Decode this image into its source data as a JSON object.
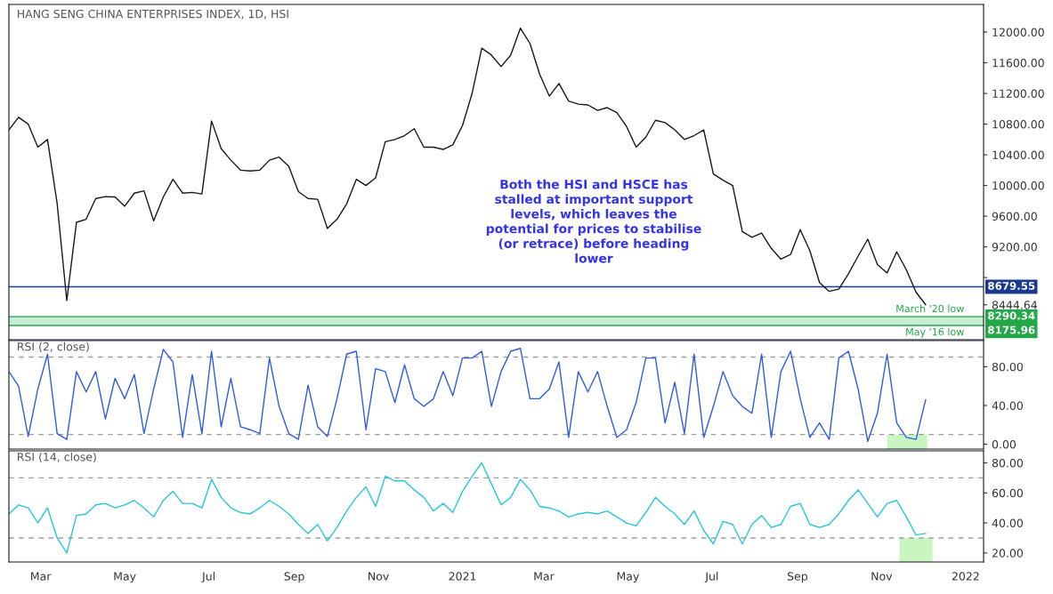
{
  "chart_data": [
    {
      "type": "line",
      "title": "HANG SENG CHINA ENTERPRISES INDEX, 1D, HSI",
      "x": [
        "2020-02-07",
        "2020-02-14",
        "2020-02-21",
        "2020-02-28",
        "2020-03-06",
        "2020-03-13",
        "2020-03-20",
        "2020-03-27",
        "2020-04-03",
        "2020-04-10",
        "2020-04-17",
        "2020-04-24",
        "2020-05-01",
        "2020-05-08",
        "2020-05-15",
        "2020-05-22",
        "2020-05-29",
        "2020-06-05",
        "2020-06-12",
        "2020-06-19",
        "2020-06-26",
        "2020-07-03",
        "2020-07-10",
        "2020-07-17",
        "2020-07-24",
        "2020-07-31",
        "2020-08-07",
        "2020-08-14",
        "2020-08-21",
        "2020-08-28",
        "2020-09-04",
        "2020-09-11",
        "2020-09-18",
        "2020-09-25",
        "2020-10-02",
        "2020-10-09",
        "2020-10-16",
        "2020-10-23",
        "2020-10-30",
        "2020-11-06",
        "2020-11-13",
        "2020-11-20",
        "2020-11-27",
        "2020-12-04",
        "2020-12-11",
        "2020-12-18",
        "2020-12-25",
        "2021-01-01",
        "2021-01-08",
        "2021-01-15",
        "2021-01-22",
        "2021-01-29",
        "2021-02-05",
        "2021-02-12",
        "2021-02-19",
        "2021-02-26",
        "2021-03-05",
        "2021-03-12",
        "2021-03-19",
        "2021-03-26",
        "2021-04-02",
        "2021-04-09",
        "2021-04-16",
        "2021-04-23",
        "2021-04-30",
        "2021-05-07",
        "2021-05-14",
        "2021-05-21",
        "2021-05-28",
        "2021-06-04",
        "2021-06-11",
        "2021-06-18",
        "2021-06-25",
        "2021-07-02",
        "2021-07-09",
        "2021-07-16",
        "2021-07-23",
        "2021-07-30",
        "2021-08-06",
        "2021-08-13",
        "2021-08-20",
        "2021-08-27",
        "2021-09-03",
        "2021-09-10",
        "2021-09-17",
        "2021-09-24",
        "2021-10-01",
        "2021-10-08",
        "2021-10-15",
        "2021-10-22",
        "2021-10-29",
        "2021-11-05",
        "2021-11-12",
        "2021-11-19",
        "2021-11-26",
        "2021-12-03"
      ],
      "series": [
        {
          "color": "#131722",
          "values": [
            10725,
            10890,
            10800,
            10500,
            10600,
            9765,
            8500,
            9520,
            9560,
            9830,
            9855,
            9850,
            9730,
            9900,
            9930,
            9540,
            9850,
            10080,
            9900,
            9910,
            9890,
            10840,
            10480,
            10330,
            10200,
            10190,
            10200,
            10330,
            10370,
            10250,
            9920,
            9830,
            9820,
            9440,
            9560,
            9760,
            10080,
            10000,
            10100,
            10570,
            10600,
            10650,
            10740,
            10500,
            10500,
            10470,
            10530,
            10780,
            11200,
            11790,
            11700,
            11550,
            11700,
            12050,
            11850,
            11450,
            11165,
            11330,
            11100,
            11060,
            11050,
            10980,
            11015,
            10950,
            10770,
            10500,
            10630,
            10850,
            10820,
            10725,
            10600,
            10650,
            10725,
            10150,
            10070,
            10000,
            9400,
            9325,
            9380,
            9180,
            9040,
            9100,
            9425,
            9150,
            8735,
            8620,
            8650,
            8850,
            9080,
            9300,
            8970,
            8860,
            9135,
            8900,
            8610,
            8444.64
          ]
        }
      ],
      "xlim": [
        "2020-02-07",
        "2022-01-14"
      ],
      "ylim": [
        7990,
        12360
      ],
      "yticks": [
        {
          "value": 8444.64,
          "label": "8444.64"
        },
        {
          "value": 8800,
          "label": null
        },
        {
          "value": 9200,
          "label": "9200.00"
        },
        {
          "value": 9600,
          "label": "9600.00"
        },
        {
          "value": 10000,
          "label": "10000.00"
        },
        {
          "value": 10400,
          "label": "10400.00"
        },
        {
          "value": 10800,
          "label": "10800.00"
        },
        {
          "value": 11200,
          "label": "11200.00"
        },
        {
          "value": 11600,
          "label": "11600.00"
        },
        {
          "value": 12000,
          "label": "12000.00"
        }
      ],
      "tick_labels": "y",
      "bands": [
        {
          "axis": "y",
          "from": 8175.96,
          "to": 8290.34,
          "color": "#c8eed5"
        }
      ],
      "ref_lines": [
        {
          "axis": "y",
          "value": 8679.55,
          "label": "8679.55",
          "color": "#1a3a8f"
        },
        {
          "axis": "y",
          "value": 8290.34,
          "label": "8290.34",
          "color": "#22a846"
        },
        {
          "axis": "y",
          "value": 8175.96,
          "label": "8175.96",
          "color": "#22a846"
        }
      ],
      "annotations": [
        "Both the HSI and HSCE has\nstalled at important support\nlevels, which leaves the\npotential for prices to stabilise\n(or retrace) before heading\nlower",
        {
          "text": "March '20 low",
          "x": "2021-12-31",
          "y": 8290.34
        },
        {
          "text": "May '16 low",
          "x": "2021-12-31",
          "y": 8175.96
        }
      ]
    },
    {
      "type": "line",
      "title": "RSI (2, close)",
      "x": [
        "2020-02-07",
        "2020-02-14",
        "2020-02-21",
        "2020-02-28",
        "2020-03-06",
        "2020-03-13",
        "2020-03-20",
        "2020-03-27",
        "2020-04-03",
        "2020-04-10",
        "2020-04-17",
        "2020-04-24",
        "2020-05-01",
        "2020-05-08",
        "2020-05-15",
        "2020-05-22",
        "2020-05-29",
        "2020-06-05",
        "2020-06-12",
        "2020-06-19",
        "2020-06-26",
        "2020-07-03",
        "2020-07-10",
        "2020-07-17",
        "2020-07-24",
        "2020-07-31",
        "2020-08-07",
        "2020-08-14",
        "2020-08-21",
        "2020-08-28",
        "2020-09-04",
        "2020-09-11",
        "2020-09-18",
        "2020-09-25",
        "2020-10-02",
        "2020-10-09",
        "2020-10-16",
        "2020-10-23",
        "2020-10-30",
        "2020-11-06",
        "2020-11-13",
        "2020-11-20",
        "2020-11-27",
        "2020-12-04",
        "2020-12-11",
        "2020-12-18",
        "2020-12-25",
        "2021-01-01",
        "2021-01-08",
        "2021-01-15",
        "2021-01-22",
        "2021-01-29",
        "2021-02-05",
        "2021-02-12",
        "2021-02-19",
        "2021-02-26",
        "2021-03-05",
        "2021-03-12",
        "2021-03-19",
        "2021-03-26",
        "2021-04-02",
        "2021-04-09",
        "2021-04-16",
        "2021-04-23",
        "2021-04-30",
        "2021-05-07",
        "2021-05-14",
        "2021-05-21",
        "2021-05-28",
        "2021-06-04",
        "2021-06-11",
        "2021-06-18",
        "2021-06-25",
        "2021-07-02",
        "2021-07-09",
        "2021-07-16",
        "2021-07-23",
        "2021-07-30",
        "2021-08-06",
        "2021-08-13",
        "2021-08-20",
        "2021-08-27",
        "2021-09-03",
        "2021-09-10",
        "2021-09-17",
        "2021-09-24",
        "2021-10-01",
        "2021-10-08",
        "2021-10-15",
        "2021-10-22",
        "2021-10-29",
        "2021-11-05",
        "2021-11-12",
        "2021-11-19",
        "2021-11-26",
        "2021-12-03"
      ],
      "series": [
        {
          "color": "#2e5ce6",
          "values": [
            75,
            60,
            8,
            57,
            93,
            11,
            5,
            75,
            54,
            75,
            26,
            68,
            47,
            72,
            11,
            57,
            98,
            85,
            7,
            72,
            11,
            96,
            18,
            68,
            18,
            15,
            11,
            89,
            39,
            11,
            5,
            61,
            18,
            8,
            47,
            93,
            96,
            15,
            78,
            75,
            43,
            82,
            47,
            39,
            47,
            75,
            50,
            89,
            89,
            96,
            39,
            75,
            96,
            99,
            47,
            47,
            57,
            85,
            7,
            75,
            54,
            75,
            39,
            7,
            15,
            43,
            89,
            89,
            22,
            64,
            11,
            93,
            7,
            39,
            75,
            50,
            39,
            32,
            93,
            7,
            75,
            96,
            47,
            7,
            22,
            5,
            89,
            96,
            57,
            3,
            32,
            93,
            22,
            7,
            5,
            46
          ]
        }
      ],
      "xlim": [
        "2020-02-07",
        "2022-01-14"
      ],
      "ylim": [
        -5,
        107
      ],
      "yticks": [
        {
          "value": 0,
          "label": "0.00"
        },
        {
          "value": 40,
          "label": "40.00"
        },
        {
          "value": 80,
          "label": "80.00"
        }
      ],
      "tick_labels": "y",
      "ref_lines": [
        {
          "axis": "y",
          "value": 90,
          "color": "#9e9e9e",
          "line_style": "dashed"
        },
        {
          "axis": "y",
          "value": 10,
          "color": "#9e9e9e",
          "line_style": "dashed"
        }
      ],
      "bands": [
        {
          "axis": "x",
          "from": "2021-11-05",
          "to": "2021-12-04",
          "color": "#c8f5c0"
        }
      ]
    },
    {
      "type": "line",
      "title": "RSI (14, close)",
      "x": [
        "2020-02-07",
        "2020-02-14",
        "2020-02-21",
        "2020-02-28",
        "2020-03-06",
        "2020-03-13",
        "2020-03-20",
        "2020-03-27",
        "2020-04-03",
        "2020-04-10",
        "2020-04-17",
        "2020-04-24",
        "2020-05-01",
        "2020-05-08",
        "2020-05-15",
        "2020-05-22",
        "2020-05-29",
        "2020-06-05",
        "2020-06-12",
        "2020-06-19",
        "2020-06-26",
        "2020-07-03",
        "2020-07-10",
        "2020-07-17",
        "2020-07-24",
        "2020-07-31",
        "2020-08-07",
        "2020-08-14",
        "2020-08-21",
        "2020-08-28",
        "2020-09-04",
        "2020-09-11",
        "2020-09-18",
        "2020-09-25",
        "2020-10-02",
        "2020-10-09",
        "2020-10-16",
        "2020-10-23",
        "2020-10-30",
        "2020-11-06",
        "2020-11-13",
        "2020-11-20",
        "2020-11-27",
        "2020-12-04",
        "2020-12-11",
        "2020-12-18",
        "2020-12-25",
        "2021-01-01",
        "2021-01-08",
        "2021-01-15",
        "2021-01-22",
        "2021-01-29",
        "2021-02-05",
        "2021-02-12",
        "2021-02-19",
        "2021-02-26",
        "2021-03-05",
        "2021-03-12",
        "2021-03-19",
        "2021-03-26",
        "2021-04-02",
        "2021-04-09",
        "2021-04-16",
        "2021-04-23",
        "2021-04-30",
        "2021-05-07",
        "2021-05-14",
        "2021-05-21",
        "2021-05-28",
        "2021-06-04",
        "2021-06-11",
        "2021-06-18",
        "2021-06-25",
        "2021-07-02",
        "2021-07-09",
        "2021-07-16",
        "2021-07-23",
        "2021-07-30",
        "2021-08-06",
        "2021-08-13",
        "2021-08-20",
        "2021-08-27",
        "2021-09-03",
        "2021-09-10",
        "2021-09-17",
        "2021-09-24",
        "2021-10-01",
        "2021-10-08",
        "2021-10-15",
        "2021-10-22",
        "2021-10-29",
        "2021-11-05",
        "2021-11-12",
        "2021-11-19",
        "2021-11-26",
        "2021-12-03"
      ],
      "series": [
        {
          "color": "#26c6da",
          "values": [
            46,
            52,
            50,
            40,
            50,
            30,
            20,
            45,
            46,
            52,
            53,
            50,
            52,
            55,
            50,
            44,
            55,
            61,
            53,
            53,
            50,
            69,
            57,
            50,
            47,
            46,
            50,
            55,
            51,
            46,
            39,
            33,
            39,
            28,
            37,
            48,
            57,
            64,
            51,
            71,
            68,
            68,
            62,
            57,
            48,
            53,
            47,
            61,
            71,
            80,
            66,
            52,
            57,
            69,
            62,
            51,
            50,
            48,
            44,
            46,
            47,
            46,
            48,
            44,
            40,
            38,
            47,
            57,
            51,
            46,
            39,
            48,
            35,
            26,
            41,
            39,
            26,
            39,
            45,
            37,
            39,
            51,
            53,
            39,
            37,
            39,
            46,
            55,
            62,
            53,
            44,
            53,
            55,
            44,
            32,
            33
          ]
        }
      ],
      "xlim": [
        "2020-02-07",
        "2022-01-14"
      ],
      "ylim": [
        14,
        88
      ],
      "xticks": [
        {
          "value": "2020-03-01",
          "label": "Mar"
        },
        {
          "value": "2020-05-01",
          "label": "May"
        },
        {
          "value": "2020-07-01",
          "label": "Jul"
        },
        {
          "value": "2020-09-01",
          "label": "Sep"
        },
        {
          "value": "2020-11-01",
          "label": "Nov"
        },
        {
          "value": "2021-01-01",
          "label": "2021"
        },
        {
          "value": "2021-03-01",
          "label": "Mar"
        },
        {
          "value": "2021-05-01",
          "label": "May"
        },
        {
          "value": "2021-07-01",
          "label": "Jul"
        },
        {
          "value": "2021-09-01",
          "label": "Sep"
        },
        {
          "value": "2021-11-01",
          "label": "Nov"
        },
        {
          "value": "2022-01-01",
          "label": "2022"
        }
      ],
      "yticks": [
        {
          "value": 20,
          "label": "20.00"
        },
        {
          "value": 40,
          "label": "40.00"
        },
        {
          "value": 60,
          "label": "60.00"
        },
        {
          "value": 80,
          "label": "80.00"
        }
      ],
      "ref_lines": [
        {
          "axis": "y",
          "value": 70,
          "color": "#9e9e9e",
          "line_style": "dashed"
        },
        {
          "axis": "y",
          "value": 30,
          "color": "#9e9e9e",
          "line_style": "dashed"
        }
      ],
      "bands": [
        {
          "axis": "x",
          "from": "2021-11-14",
          "to": "2021-12-08",
          "color": "#c8f5c0"
        }
      ]
    }
  ]
}
